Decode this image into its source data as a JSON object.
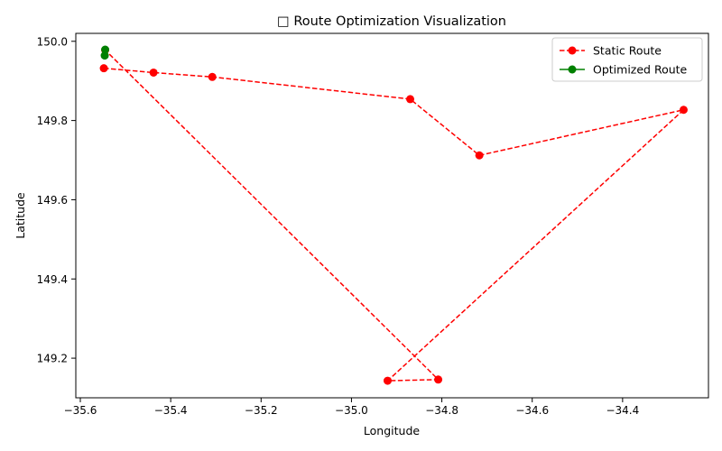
{
  "chart_data": {
    "type": "line",
    "title": "□ Route Optimization Visualization",
    "xlabel": "Longitude",
    "ylabel": "Latitude",
    "xlim": [
      -35.61,
      -34.21
    ],
    "ylim": [
      149.1,
      150.02
    ],
    "x_ticks": [
      -35.6,
      -35.4,
      -35.2,
      -35.0,
      -34.8,
      -34.6,
      -34.4
    ],
    "x_tick_labels": [
      "−35.6",
      "−35.4",
      "−35.2",
      "−35.0",
      "−34.8",
      "−34.6",
      "−34.4"
    ],
    "y_ticks": [
      149.2,
      149.4,
      149.6,
      149.8,
      150.0
    ],
    "y_tick_labels": [
      "149.2",
      "149.4",
      "149.6",
      "149.8",
      "150.0"
    ],
    "grid": false,
    "legend_position": "top-right",
    "series": [
      {
        "name": "Static Route",
        "color": "#ff0000",
        "line_style": "dashed",
        "marker": "circle",
        "points": [
          {
            "x": -35.548,
            "y": 149.932
          },
          {
            "x": -35.438,
            "y": 149.921
          },
          {
            "x": -35.308,
            "y": 149.91
          },
          {
            "x": -34.87,
            "y": 149.854
          },
          {
            "x": -34.717,
            "y": 149.712
          },
          {
            "x": -34.265,
            "y": 149.827
          },
          {
            "x": -34.92,
            "y": 149.143
          },
          {
            "x": -34.808,
            "y": 149.146
          },
          {
            "x": -35.545,
            "y": 149.978
          }
        ]
      },
      {
        "name": "Optimized Route",
        "color": "#008000",
        "line_style": "solid",
        "marker": "circle",
        "points": [
          {
            "x": -35.546,
            "y": 149.964
          },
          {
            "x": -35.545,
            "y": 149.979
          }
        ]
      }
    ]
  }
}
